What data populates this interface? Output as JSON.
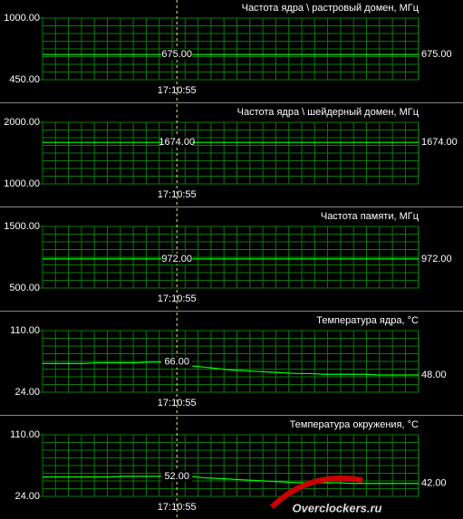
{
  "chart_data": [
    {
      "type": "line",
      "title": "Частота ядра \\ растровый домен, МГц",
      "categories": [
        null,
        null,
        null,
        null,
        null,
        null,
        null,
        null,
        null,
        null,
        "17:10:55",
        null,
        null,
        null,
        null,
        null,
        null,
        null,
        null,
        null,
        null,
        null,
        null,
        null,
        null,
        null,
        null,
        null,
        null
      ],
      "series": [
        {
          "color": "#00ff00",
          "values": [
            675,
            675,
            675,
            675,
            675,
            675,
            675,
            675,
            675,
            675,
            675,
            675,
            675,
            675,
            675,
            675,
            675,
            675,
            675,
            675,
            675,
            675,
            675,
            675,
            675,
            675,
            675,
            675,
            675
          ],
          "value_labels": [
            null,
            null,
            null,
            null,
            null,
            null,
            null,
            null,
            null,
            null,
            "675.00",
            null,
            null,
            null,
            null,
            null,
            null,
            null,
            null,
            null,
            null,
            null,
            null,
            null,
            null,
            null,
            null,
            null,
            "675.00"
          ]
        }
      ],
      "ylim": [
        450,
        1000
      ],
      "yticks": [
        {
          "value": 450,
          "label": "450.00"
        },
        {
          "value": 1000,
          "label": "1000.00"
        }
      ],
      "grid": true
    },
    {
      "type": "line",
      "title": "Частота ядра \\ шейдерный домен, МГц",
      "categories": [
        null,
        null,
        null,
        null,
        null,
        null,
        null,
        null,
        null,
        null,
        "17:10:55",
        null,
        null,
        null,
        null,
        null,
        null,
        null,
        null,
        null,
        null,
        null,
        null,
        null,
        null,
        null,
        null,
        null,
        null
      ],
      "series": [
        {
          "color": "#00ff00",
          "values": [
            1674,
            1674,
            1674,
            1674,
            1674,
            1674,
            1674,
            1674,
            1674,
            1674,
            1674,
            1674,
            1674,
            1674,
            1674,
            1674,
            1674,
            1674,
            1674,
            1674,
            1674,
            1674,
            1674,
            1674,
            1674,
            1674,
            1674,
            1674,
            1674
          ],
          "value_labels": [
            null,
            null,
            null,
            null,
            null,
            null,
            null,
            null,
            null,
            null,
            "1674.00",
            null,
            null,
            null,
            null,
            null,
            null,
            null,
            null,
            null,
            null,
            null,
            null,
            null,
            null,
            null,
            null,
            null,
            "1674.00"
          ]
        }
      ],
      "ylim": [
        1000,
        2000
      ],
      "yticks": [
        {
          "value": 1000,
          "label": "1000.00"
        },
        {
          "value": 2000,
          "label": "2000.00"
        }
      ],
      "grid": true
    },
    {
      "type": "line",
      "title": "Частота памяти, МГц",
      "categories": [
        null,
        null,
        null,
        null,
        null,
        null,
        null,
        null,
        null,
        null,
        "17:10:55",
        null,
        null,
        null,
        null,
        null,
        null,
        null,
        null,
        null,
        null,
        null,
        null,
        null,
        null,
        null,
        null,
        null,
        null
      ],
      "series": [
        {
          "color": "#00ff00",
          "values": [
            972,
            972,
            972,
            972,
            972,
            972,
            972,
            972,
            972,
            972,
            972,
            972,
            972,
            972,
            972,
            972,
            972,
            972,
            972,
            972,
            972,
            972,
            972,
            972,
            972,
            972,
            972,
            972,
            972
          ],
          "value_labels": [
            null,
            null,
            null,
            null,
            null,
            null,
            null,
            null,
            null,
            null,
            "972.00",
            null,
            null,
            null,
            null,
            null,
            null,
            null,
            null,
            null,
            null,
            null,
            null,
            null,
            null,
            null,
            null,
            null,
            "972.00"
          ]
        }
      ],
      "ylim": [
        500,
        1500
      ],
      "yticks": [
        {
          "value": 500,
          "label": "500.00"
        },
        {
          "value": 1500,
          "label": "1500.00"
        }
      ],
      "grid": true
    },
    {
      "type": "line",
      "title": "Температура ядра, °C",
      "categories": [
        null,
        null,
        null,
        null,
        null,
        null,
        null,
        null,
        null,
        null,
        "17:10:55",
        null,
        null,
        null,
        null,
        null,
        null,
        null,
        null,
        null,
        null,
        null,
        null,
        null,
        null,
        null,
        null,
        null,
        null
      ],
      "series": [
        {
          "color": "#00ff00",
          "values": [
            64,
            64,
            64,
            64,
            65,
            65,
            65,
            65,
            66,
            66,
            66,
            61,
            59,
            57,
            55,
            54,
            53,
            52,
            51,
            50,
            50,
            49,
            49,
            49,
            49,
            48,
            48,
            48,
            48
          ],
          "value_labels": [
            null,
            null,
            null,
            null,
            null,
            null,
            null,
            null,
            null,
            null,
            "66.00",
            null,
            null,
            null,
            null,
            null,
            null,
            null,
            null,
            null,
            null,
            null,
            null,
            null,
            null,
            null,
            null,
            null,
            "48.00"
          ]
        }
      ],
      "ylim": [
        24,
        110
      ],
      "yticks": [
        {
          "value": 24,
          "label": "24.00"
        },
        {
          "value": 110,
          "label": "110.00"
        }
      ],
      "grid": true
    },
    {
      "type": "line",
      "title": "Температура окружения, °C",
      "categories": [
        null,
        null,
        null,
        null,
        null,
        null,
        null,
        null,
        null,
        null,
        "17:10:55",
        null,
        null,
        null,
        null,
        null,
        null,
        null,
        null,
        null,
        null,
        null,
        null,
        null,
        null,
        null,
        null,
        null,
        null
      ],
      "series": [
        {
          "color": "#00ff00",
          "values": [
            51,
            51,
            51,
            51,
            51,
            51,
            52,
            52,
            52,
            52,
            52,
            52,
            50,
            49,
            48,
            47,
            46,
            45,
            44,
            43,
            43,
            43,
            43,
            42,
            42,
            42,
            42,
            42,
            42
          ],
          "value_labels": [
            null,
            null,
            null,
            null,
            null,
            null,
            null,
            null,
            null,
            null,
            "52.00",
            null,
            null,
            null,
            null,
            null,
            null,
            null,
            null,
            null,
            null,
            null,
            null,
            null,
            null,
            null,
            null,
            null,
            "42.00"
          ]
        }
      ],
      "ylim": [
        24,
        110
      ],
      "yticks": [
        {
          "value": 24,
          "label": "24.00"
        },
        {
          "value": 110,
          "label": "110.00"
        }
      ],
      "grid": true
    }
  ],
  "watermark": "Overclockers.ru"
}
